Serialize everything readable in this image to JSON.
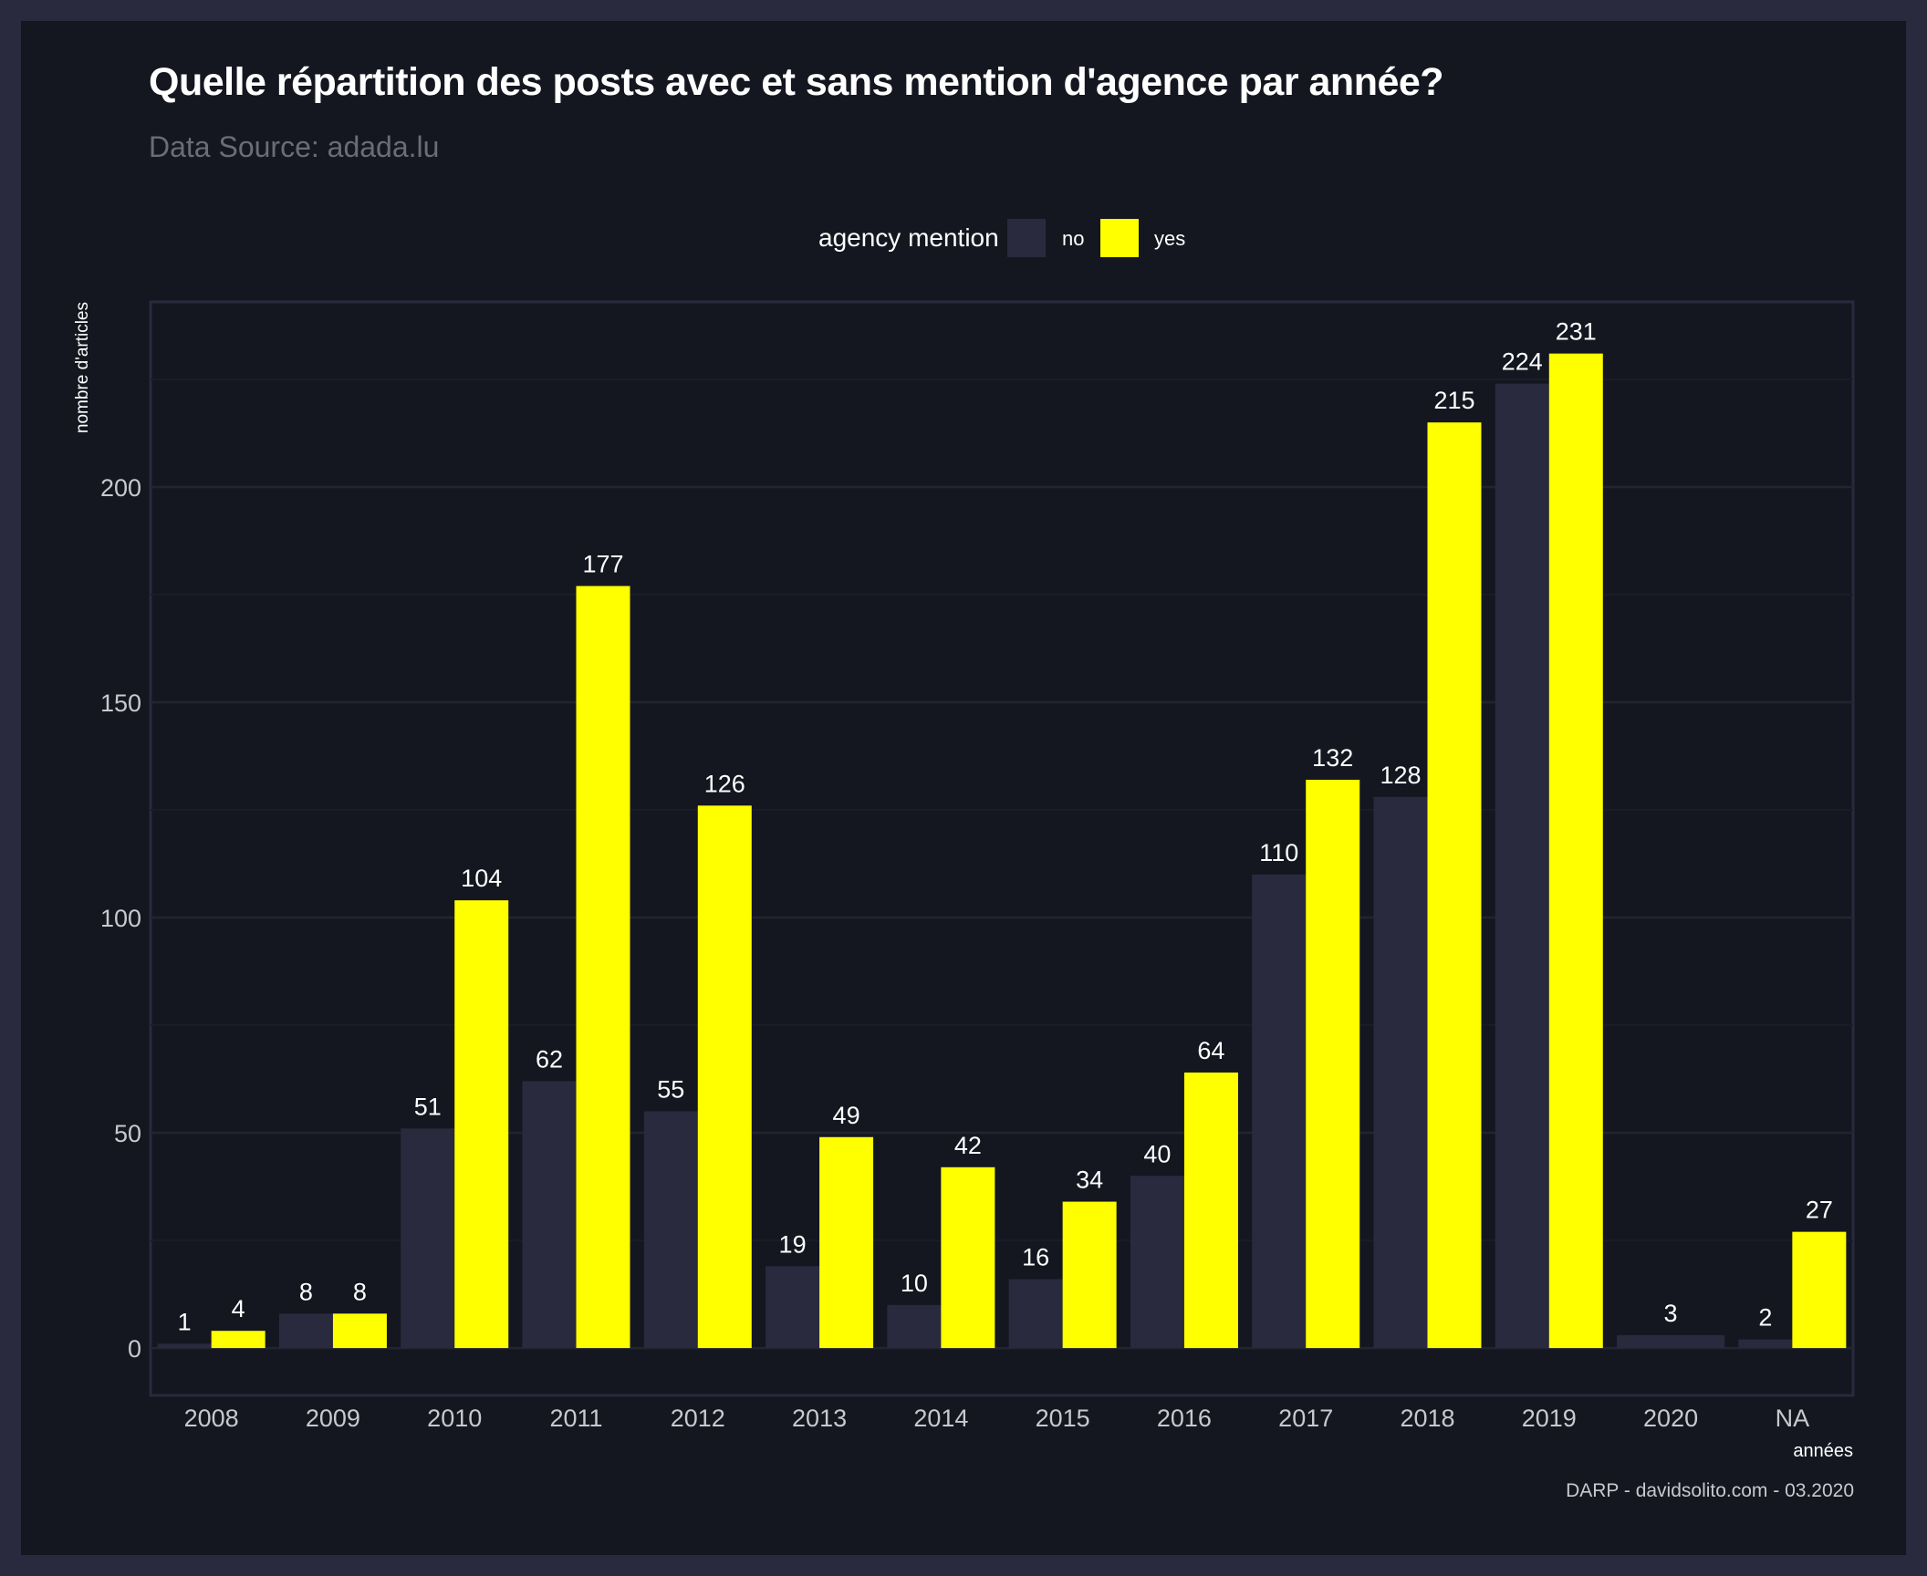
{
  "title": "Quelle répartition des posts avec et sans mention d'agence par année?",
  "subtitle": "Data Source: adada.lu",
  "caption": "DARP - davidsolito.com - 03.2020",
  "legend": {
    "title": "agency mention",
    "items": [
      {
        "label": "no",
        "color": "#292a3d"
      },
      {
        "label": "yes",
        "color": "#ffff00"
      }
    ]
  },
  "chart_data": {
    "type": "bar",
    "title": "Quelle répartition des posts avec et sans mention d'agence par année?",
    "subtitle": "Data Source: adada.lu",
    "xlabel": "années",
    "ylabel": "nombre d'articles",
    "categories": [
      "2008",
      "2009",
      "2010",
      "2011",
      "2012",
      "2013",
      "2014",
      "2015",
      "2016",
      "2017",
      "2018",
      "2019",
      "2020",
      "NA"
    ],
    "series": [
      {
        "name": "no",
        "color": "#292a3d",
        "values": [
          1,
          8,
          51,
          62,
          55,
          19,
          10,
          16,
          40,
          110,
          128,
          224,
          3,
          2
        ]
      },
      {
        "name": "yes",
        "color": "#ffff00",
        "values": [
          4,
          8,
          104,
          177,
          126,
          49,
          42,
          34,
          64,
          132,
          215,
          231,
          null,
          27
        ]
      }
    ],
    "yticks": [
      0,
      50,
      100,
      150,
      200
    ],
    "ylim": [
      -11,
      243
    ],
    "grid": true,
    "legend_position": "top"
  }
}
